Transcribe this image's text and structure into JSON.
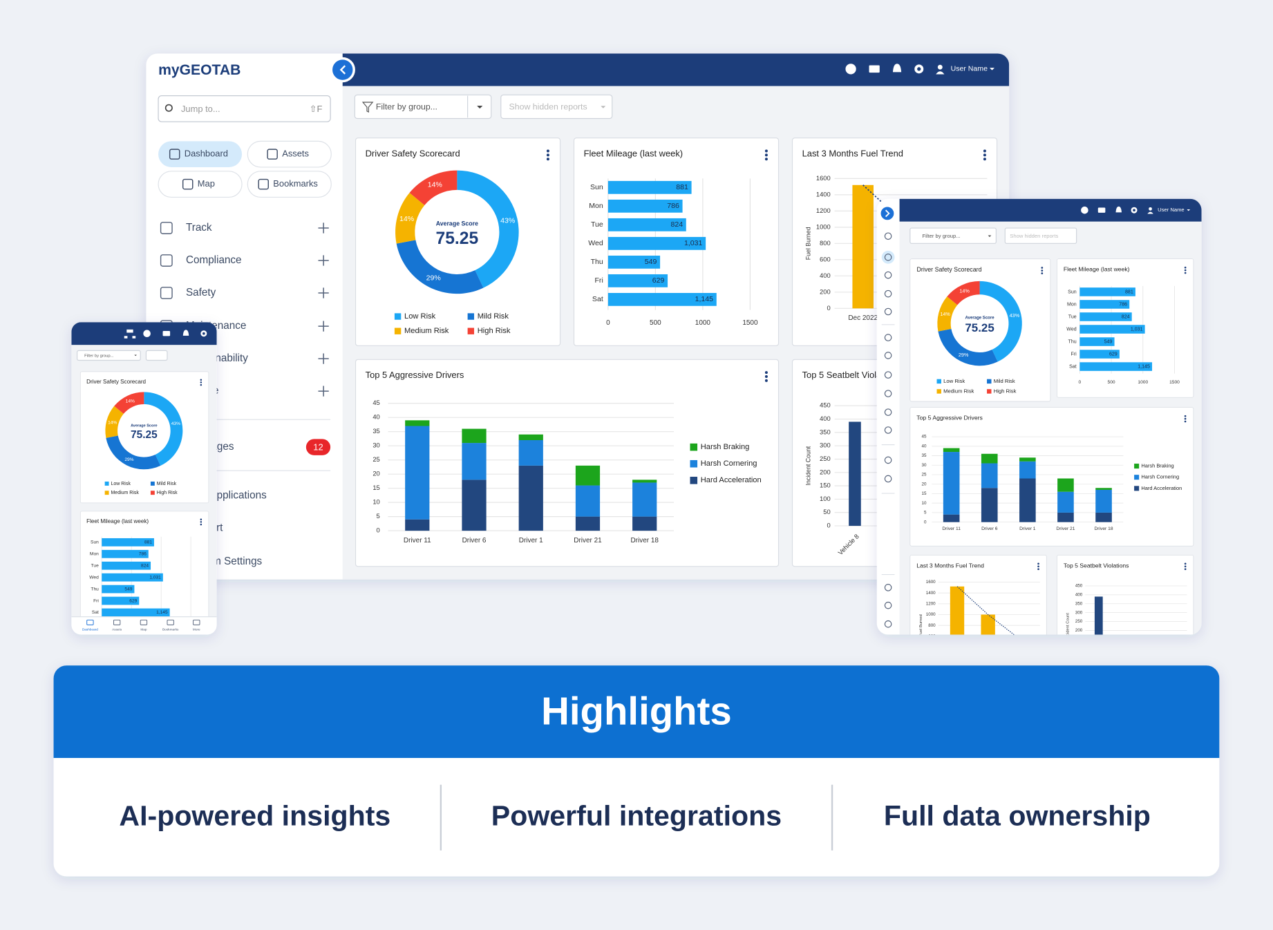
{
  "desktop": {
    "logo": "myGEOTAB",
    "search": {
      "placeholder": "Jump to...",
      "shortcut": "⇧F"
    },
    "quick_links": [
      "Dashboard",
      "Assets",
      "Map",
      "Bookmarks"
    ],
    "menu": [
      "Track",
      "Compliance",
      "Safety",
      "Maintenance",
      "Sustainability",
      "People"
    ],
    "messages": {
      "label": "Messages",
      "badge": 12
    },
    "lower_menu": [
      "Web Applications",
      "Support",
      "System Settings"
    ],
    "user": "User Name",
    "filter": "Filter by group...",
    "hidden_reports": "Show hidden reports"
  },
  "tablet": {
    "user": "User Name",
    "filter": "Filter by group...",
    "hidden_reports": "Show hidden reports"
  },
  "phone": {
    "filter": "Filter by group...",
    "nav": [
      "Dashboard",
      "Assets",
      "Map",
      "Bookmarks",
      "More"
    ]
  },
  "chart_data": [
    {
      "type": "donut",
      "title": "Driver Safety Scorecard",
      "categories": [
        "Low Risk",
        "Mild Risk",
        "Medium Risk",
        "High Risk"
      ],
      "values": [
        43,
        29,
        14,
        14
      ],
      "value_labels": [
        "43%",
        "29%",
        "14%",
        "14%"
      ],
      "colors": [
        "#1aa7f5",
        "#1475d3",
        "#f5b301",
        "#f44336"
      ],
      "center_label": "Average Score",
      "center_value": 75.25
    },
    {
      "type": "bar",
      "orientation": "horizontal",
      "title": "Fleet Mileage (last week)",
      "categories": [
        "Sun",
        "Mon",
        "Tue",
        "Wed",
        "Thu",
        "Fri",
        "Sat"
      ],
      "values": [
        881,
        786,
        824,
        1031,
        549,
        629,
        1145
      ],
      "value_labels": [
        "881",
        "786",
        "824",
        "1,031",
        "549",
        "629",
        "1,145"
      ],
      "color": "#1aa7f5",
      "xlim": [
        0,
        1500
      ],
      "xticks": [
        0,
        500,
        1000,
        1500
      ],
      "grid": true
    },
    {
      "type": "bar",
      "title": "Last 3 Months Fuel Trend",
      "y_label": "Fuel Burned",
      "categories": [
        "Dec 2022",
        null,
        null
      ],
      "values": [
        1520,
        1000,
        560
      ],
      "color": "#f5b301",
      "ylim": [
        0,
        1600
      ],
      "yticks": [
        0,
        200,
        400,
        600,
        800,
        1000,
        1200,
        1400,
        1600
      ],
      "grid": true,
      "trendline": true
    },
    {
      "type": "stacked_bar",
      "title": "Top 5 Aggressive Drivers",
      "categories": [
        "Driver 11",
        "Driver 6",
        "Driver 1",
        "Driver 21",
        "Driver 18"
      ],
      "series": [
        {
          "name": "Harsh Braking",
          "color": "#1fa51f",
          "values": [
            2,
            5,
            2,
            7,
            1
          ]
        },
        {
          "name": "Harsh Cornering",
          "color": "#1a82dc",
          "values": [
            33,
            13,
            9,
            11,
            12
          ]
        },
        {
          "name": "Hard Acceleration",
          "color": "#22467f",
          "values": [
            4,
            18,
            23,
            5,
            5
          ]
        }
      ],
      "ylim": [
        0,
        45
      ],
      "yticks": [
        0,
        5,
        10,
        15,
        20,
        25,
        30,
        35,
        40,
        45
      ],
      "grid": true,
      "legend": "right"
    },
    {
      "type": "bar",
      "title": "Top 5 Seatbelt Violations",
      "y_label": "Incident Count",
      "categories": [
        "Vehicle 8"
      ],
      "values": [
        390
      ],
      "color": "#22467f",
      "ylim": [
        0,
        450
      ],
      "yticks": [
        0,
        50,
        100,
        150,
        200,
        250,
        300,
        350,
        400,
        450
      ],
      "grid": true,
      "x_labels": "rotated"
    }
  ],
  "highlights": {
    "title": "Highlights",
    "items": [
      "AI-powered insights",
      "Powerful integrations",
      "Full data ownership"
    ]
  }
}
